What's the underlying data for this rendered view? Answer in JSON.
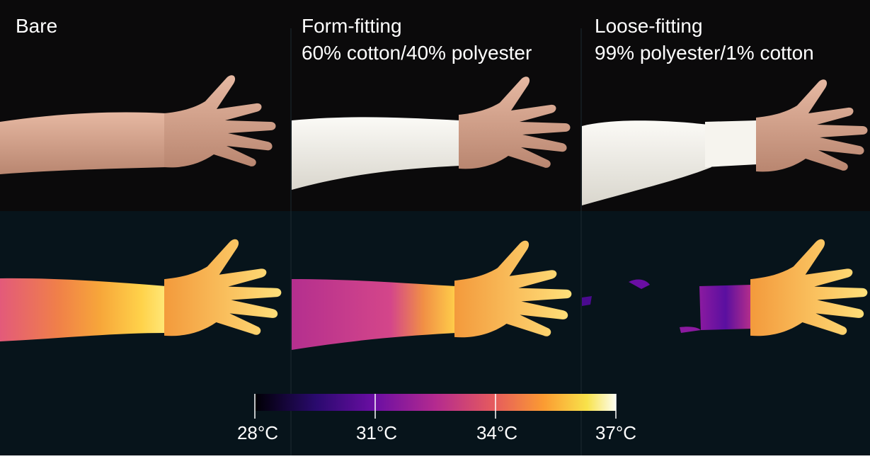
{
  "panels": [
    {
      "title_line1": "Bare",
      "title_line2": ""
    },
    {
      "title_line1": "Form-fitting",
      "title_line2": "60% cotton/40% polyester"
    },
    {
      "title_line1": "Loose-fitting",
      "title_line2": "99% polyester/1% cotton"
    }
  ],
  "colorbar": {
    "ticks": [
      "28°C",
      "31°C",
      "34°C",
      "37°C"
    ],
    "colors": [
      "#0d0887",
      "#6a00a8",
      "#b12a90",
      "#e16462",
      "#fca636",
      "#f0f921",
      "#ffffff"
    ]
  },
  "colors": {
    "photo_background": "#0b0a0b",
    "thermal_background": "#07141b",
    "skin": "#d8a48b",
    "fabric": "#f2f0ea"
  }
}
